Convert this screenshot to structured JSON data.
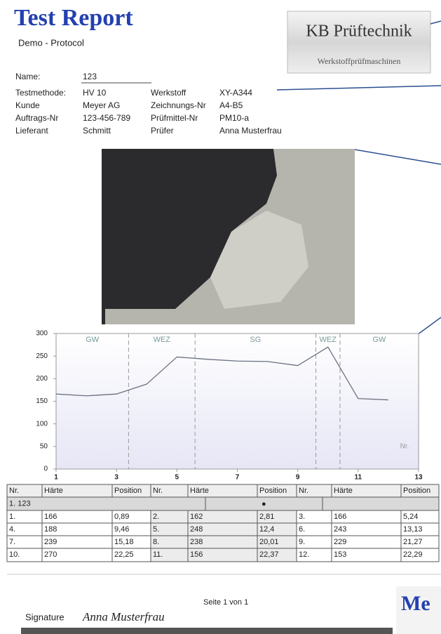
{
  "header": {
    "title": "Test Report",
    "subtitle": "Demo - Protocol"
  },
  "logo": {
    "brand": "KB Prüftechnik",
    "tagline": "Werkstoffprüfmaschinen"
  },
  "name": {
    "label": "Name:",
    "value": "123"
  },
  "fields": [
    {
      "label": "Testmethode:",
      "value": "HV 10"
    },
    {
      "label": "Werkstoff",
      "value": "XY-A344"
    },
    {
      "label": "Kunde",
      "value": "Meyer AG"
    },
    {
      "label": "Zeichnungs-Nr",
      "value": "A4-B5"
    },
    {
      "label": "Auftrags-Nr",
      "value": "123-456-789"
    },
    {
      "label": "Prüfmittel-Nr",
      "value": "PM10-a"
    },
    {
      "label": "Lieferant",
      "value": "Schmitt"
    },
    {
      "label": "Prüfer",
      "value": "Anna Musterfrau"
    }
  ],
  "chart_data": {
    "type": "line",
    "x": [
      1,
      2,
      3,
      4,
      5,
      6,
      7,
      8,
      9,
      10,
      11,
      12
    ],
    "series": [
      {
        "color": "#6b7280",
        "values": [
          166,
          162,
          166,
          188,
          248,
          243,
          239,
          238,
          229,
          270,
          156,
          153
        ]
      }
    ],
    "xlim": [
      1,
      13
    ],
    "ylim": [
      0,
      300
    ],
    "xticks": [
      1,
      3,
      5,
      7,
      9,
      11,
      13
    ],
    "yticks": [
      0,
      50,
      100,
      150,
      200,
      250,
      300
    ],
    "x_label": "Nr.",
    "zones": [
      "GW",
      "WEZ",
      "SG",
      "WEZ",
      "GW"
    ],
    "zone_boundaries": [
      3.4,
      5.6,
      9.6,
      10.4
    ]
  },
  "table": {
    "header": [
      "Nr.",
      "Härte",
      "Position",
      "Nr.",
      "Härte",
      "Position",
      "Nr.",
      "Härte",
      "Position"
    ],
    "group": {
      "label": "1. 123",
      "marker": "●"
    },
    "rows": [
      [
        "1.",
        "166",
        "0,89",
        "2.",
        "162",
        "2,81",
        "3.",
        "166",
        "5,24"
      ],
      [
        "4.",
        "188",
        "9,46",
        "5.",
        "248",
        "12,4",
        "6.",
        "243",
        "13,13"
      ],
      [
        "7.",
        "239",
        "15,18",
        "8.",
        "238",
        "20,01",
        "9.",
        "229",
        "21,27"
      ],
      [
        "10.",
        "270",
        "22,25",
        "11.",
        "156",
        "22,37",
        "12.",
        "153",
        "22,29"
      ]
    ]
  },
  "footer": {
    "page": "Seite 1 von 1",
    "signature_label": "Signature",
    "signature": "Anna Musterfrau",
    "next_page_title": "Me"
  }
}
